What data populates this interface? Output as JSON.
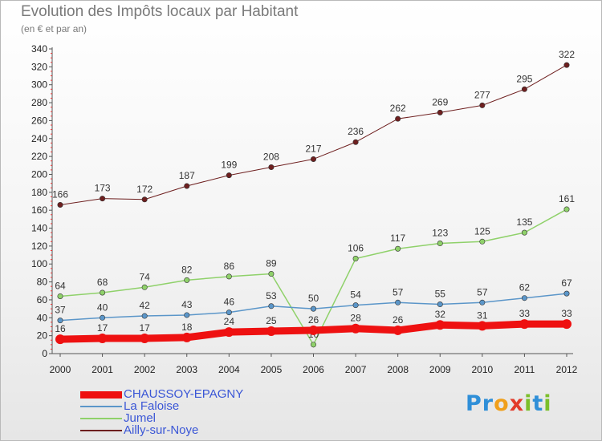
{
  "header": {
    "title": "Evolution des Impôts locaux par Habitant",
    "subtitle": "(en € et par an)"
  },
  "logo": {
    "letters": [
      {
        "char": "P",
        "color": "#2f8fd8"
      },
      {
        "char": "r",
        "color": "#2f8fd8"
      },
      {
        "char": "o",
        "color": "#f0a01c"
      },
      {
        "char": "x",
        "color": "#e23a2a"
      },
      {
        "char": "i",
        "color": "#7bbf2a"
      },
      {
        "char": "t",
        "color": "#2f8fd8"
      },
      {
        "char": "i",
        "color": "#7bbf2a"
      }
    ]
  },
  "chart_data": {
    "type": "line",
    "x": [
      "2000",
      "2001",
      "2002",
      "2003",
      "2004",
      "2005",
      "2006",
      "2007",
      "2008",
      "2009",
      "2010",
      "2011",
      "2012"
    ],
    "ylim": [
      0,
      340
    ],
    "yticks": [
      0,
      20,
      40,
      60,
      80,
      100,
      120,
      140,
      160,
      180,
      200,
      220,
      240,
      260,
      280,
      300,
      320,
      340
    ],
    "grid": false,
    "legend_position": "bottom-left",
    "series": [
      {
        "name": "Ailly-sur-Noye",
        "color": "#6e1f1f",
        "width": 1,
        "values": [
          166,
          173,
          172,
          187,
          199,
          208,
          217,
          236,
          262,
          269,
          277,
          295,
          322
        ]
      },
      {
        "name": "Jumel",
        "color": "#8fd16a",
        "width": 1.5,
        "values": [
          64,
          68,
          74,
          82,
          86,
          89,
          10,
          106,
          117,
          123,
          125,
          135,
          161
        ]
      },
      {
        "name": "La Faloise",
        "color": "#5b96c9",
        "width": 1.5,
        "values": [
          37,
          40,
          42,
          43,
          46,
          53,
          50,
          54,
          57,
          55,
          57,
          62,
          67
        ]
      },
      {
        "name": "CHAUSSOY-EPAGNY",
        "color": "#ee1111",
        "width": 9,
        "values": [
          16,
          17,
          17,
          18,
          24,
          25,
          26,
          28,
          26,
          32,
          31,
          33,
          33
        ]
      }
    ],
    "legend_order": [
      "CHAUSSOY-EPAGNY",
      "La Faloise",
      "Jumel",
      "Ailly-sur-Noye"
    ]
  }
}
